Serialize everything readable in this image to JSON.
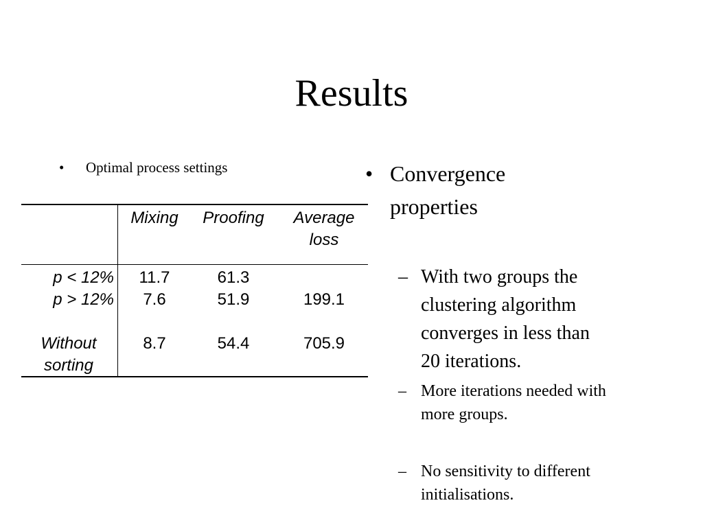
{
  "slide": {
    "title": "Results"
  },
  "left": {
    "bullet_symbol": "•",
    "bullet_text": "Optimal process settings"
  },
  "table": {
    "headers": {
      "mixing": "Mixing",
      "proofing": "Proofing",
      "average_line1": "Average",
      "average_line2": "loss"
    },
    "rows": [
      {
        "label": "p < 12%",
        "mixing": "11.7",
        "proofing": "61.3",
        "average": ""
      },
      {
        "label": "p > 12%",
        "mixing": "7.6",
        "proofing": "51.9",
        "average": "199.1"
      },
      {
        "label_line1": "Without",
        "label_line2": "sorting",
        "mixing": "8.7",
        "proofing": "54.4",
        "average": "705.9"
      }
    ]
  },
  "right": {
    "bullet_symbol": "•",
    "main_line1": "Convergence",
    "main_line2": "properties",
    "dash_symbol": "–",
    "sub1_line1": "With two groups the",
    "sub1_line2": "clustering algorithm",
    "sub1_line3": "converges in less than",
    "sub1_line4": "20 iterations.",
    "sub2_line1": "More iterations needed with",
    "sub2_line2": "more groups.",
    "sub3_line1": "No sensitivity to different",
    "sub3_line2": "initialisations."
  }
}
